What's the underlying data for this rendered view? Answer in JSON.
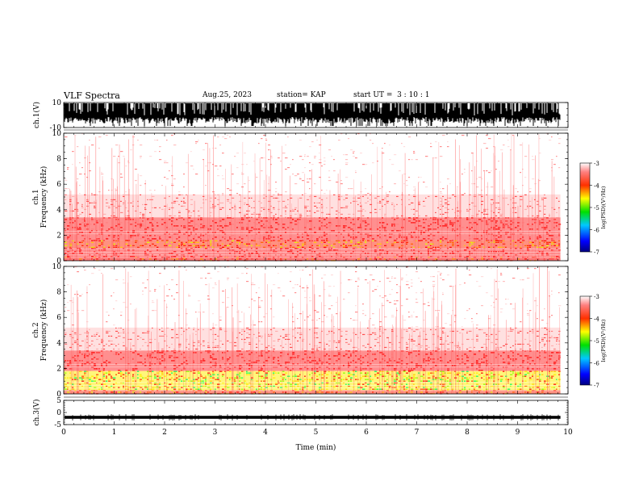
{
  "header": {
    "title": "VLF Spectra",
    "date": "Aug.25, 2023",
    "station": "station= KAP",
    "start": "start UT =  3 : 10 : 1"
  },
  "chart_data": [
    {
      "type": "line",
      "panel": "ch1-waveform",
      "ylabel": "ch.1(V)",
      "ylim": [
        -10,
        10
      ],
      "yticks": [
        10,
        -10
      ],
      "xlim": [
        0,
        10
      ],
      "data_end_min": 9.85,
      "description_values": {
        "typical_range": [
          -10,
          10
        ]
      }
    },
    {
      "type": "heatmap",
      "panel": "ch1-spectrogram",
      "ylabel_top": "ch.1",
      "ylabel": "Frequency (kHz)",
      "ylim": [
        0,
        10
      ],
      "yticks": [
        0,
        2,
        4,
        6,
        8,
        10
      ],
      "xlim": [
        0,
        10
      ],
      "data_end_min": 9.85,
      "colorbar": {
        "label": "log(PSD)(V²/Hz)",
        "range": [
          -7,
          -3
        ],
        "ticks": [
          -3,
          -4,
          -5,
          -6,
          -7
        ]
      },
      "bands_kHz": [
        {
          "range": [
            0,
            0.3
          ],
          "level": "high"
        },
        {
          "range": [
            0.3,
            1.0
          ],
          "level": "red"
        },
        {
          "range": [
            1.0,
            1.6
          ],
          "level": "red-yellow"
        },
        {
          "range": [
            1.6,
            3.4
          ],
          "level": "red"
        },
        {
          "range": [
            3.4,
            5.2
          ],
          "level": "light-red"
        },
        {
          "range": [
            5.2,
            10
          ],
          "level": "sparse"
        }
      ]
    },
    {
      "type": "heatmap",
      "panel": "ch2-spectrogram",
      "ylabel_top": "ch.2",
      "ylabel": "Frequency (kHz)",
      "ylim": [
        0,
        10
      ],
      "yticks": [
        0,
        2,
        4,
        6,
        8,
        10
      ],
      "xlim": [
        0,
        10
      ],
      "data_end_min": 9.85,
      "colorbar": {
        "label": "log(PSD)(V²/Hz)",
        "range": [
          -7,
          -3
        ],
        "ticks": [
          -3,
          -4,
          -5,
          -6,
          -7
        ]
      },
      "bands_kHz": [
        {
          "range": [
            0,
            0.3
          ],
          "level": "red-yellow"
        },
        {
          "range": [
            0.3,
            1.8
          ],
          "level": "yellow-green"
        },
        {
          "range": [
            1.8,
            3.4
          ],
          "level": "red"
        },
        {
          "range": [
            3.4,
            5.2
          ],
          "level": "light-red"
        },
        {
          "range": [
            5.2,
            10
          ],
          "level": "sparse"
        }
      ]
    },
    {
      "type": "line",
      "panel": "ch3-waveform",
      "ylabel": "ch.3(V)",
      "ylim": [
        -5,
        5
      ],
      "yticks": [
        5,
        0,
        -5
      ],
      "xlim": [
        0,
        10
      ],
      "xticks": [
        0,
        1,
        2,
        3,
        4,
        5,
        6,
        7,
        8,
        9,
        10
      ],
      "xlabel": "Time (min)",
      "data_end_min": 9.85,
      "values_approx": {
        "mean": -2,
        "spread": [
          -2.6,
          -1.4
        ]
      }
    }
  ]
}
